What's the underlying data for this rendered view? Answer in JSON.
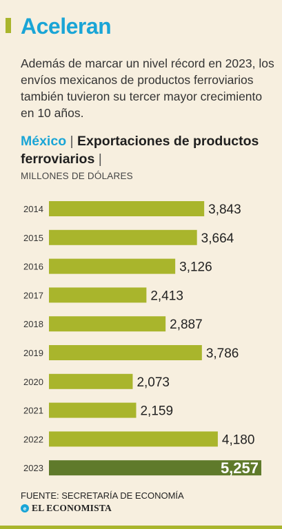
{
  "header": {
    "title": "Aceleran",
    "subtitle": "Además de marcar un nivel récord en 2023, los envíos mexicanos de productos ferroviarios también tuvieron su tercer mayor crecimiento en 10 años."
  },
  "chart_heading": {
    "country": "México",
    "separator": "|",
    "topic": "Exportaciones de productos ferroviarios",
    "units": "MILLONES DE DÓLARES"
  },
  "chart_data": {
    "type": "bar",
    "orientation": "horizontal",
    "categories": [
      "2014",
      "2015",
      "2016",
      "2017",
      "2018",
      "2019",
      "2020",
      "2021",
      "2022",
      "2023"
    ],
    "values": [
      3843,
      3664,
      3126,
      2413,
      2887,
      3786,
      2073,
      2159,
      4180,
      5257
    ],
    "value_labels": [
      "3,843",
      "3,664",
      "3,126",
      "2,413",
      "2,887",
      "3,786",
      "2,073",
      "2,159",
      "4,180",
      "5,257"
    ],
    "highlight_index": 9,
    "colors": {
      "bar": "#a9b52c",
      "highlight": "#5f7a2b",
      "highlight_label": "#ffffff",
      "label": "#222222"
    },
    "xlim": [
      0,
      5257
    ],
    "grid": false,
    "legend": "none"
  },
  "footer": {
    "source": "FUENTE: SECRETARÍA DE ECONOMÍA",
    "brand": "EL ECONOMISTA",
    "brand_icon": "e"
  }
}
